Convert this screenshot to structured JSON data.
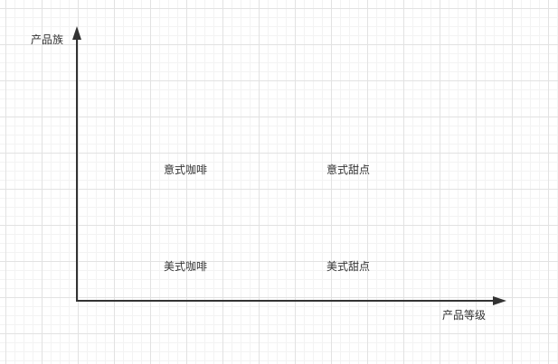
{
  "diagram": {
    "y_axis_label": "产品族",
    "x_axis_label": "产品等级",
    "cells": [
      {
        "label": "意式咖啡"
      },
      {
        "label": "意式甜点"
      },
      {
        "label": "美式咖啡"
      },
      {
        "label": "美式甜点"
      }
    ]
  },
  "colors": {
    "axis": "#333333",
    "text": "#333333",
    "grid_major": "#e2e2e2",
    "grid_minor": "#f3f3f3",
    "background": "#ffffff"
  }
}
